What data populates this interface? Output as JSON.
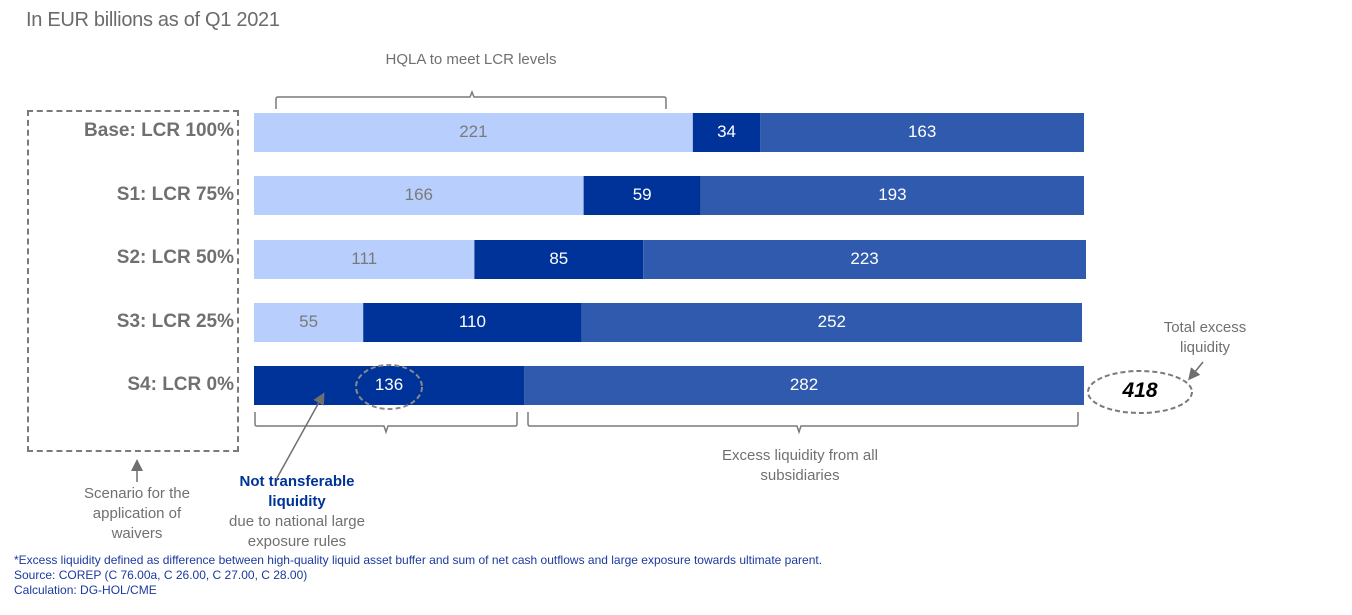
{
  "chart_data": {
    "type": "bar",
    "orientation": "horizontal-stacked",
    "title": "In EUR billions as of Q1 2021",
    "categories": [
      "Base: LCR 100%",
      "S1: LCR 75%",
      "S2: LCR 50%",
      "S3: LCR 25%",
      "S4: LCR 0%"
    ],
    "series": [
      {
        "name": "HQLA to meet LCR levels",
        "color": "#b8cefc",
        "label_color": "#7a7a7a",
        "values": [
          221,
          166,
          111,
          55,
          0
        ]
      },
      {
        "name": "Not transferable liquidity",
        "color": "#003399",
        "label_color": "#ffffff",
        "values": [
          34,
          59,
          85,
          110,
          136
        ]
      },
      {
        "name": "Excess liquidity from all subsidiaries",
        "color": "#2f5aad",
        "label_color": "#ffffff",
        "values": [
          163,
          193,
          223,
          252,
          282
        ]
      }
    ],
    "total": 418,
    "xlim": [
      0,
      418
    ],
    "grid": false
  },
  "annotations": {
    "hqla_bracket": "HQLA to meet LCR levels",
    "total_label": "Total excess liquidity",
    "total_value": "418",
    "excess_label": "Excess liquidity from all subsidiaries",
    "not_transferable_title": "Not transferable liquidity",
    "not_transferable_desc": "due to national large exposure rules",
    "scenario_label": "Scenario for the application of waivers",
    "highlighted_value": "136"
  },
  "footnotes": [
    "*Excess liquidity defined as difference between high-quality liquid asset buffer and sum of net cash outflows and large exposure towards ultimate parent.",
    "Source: COREP (C 76.00a, C 26.00, C 27.00, C 28.00)",
    "Calculation: DG-HOL/CME"
  ]
}
